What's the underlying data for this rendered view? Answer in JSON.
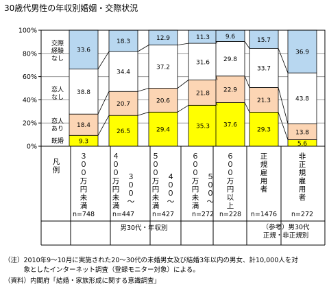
{
  "title": "30歳代男性の年収別婚姻・交際状況",
  "chart_data": {
    "type": "bar",
    "stacked": true,
    "percent": true,
    "yticks": [
      "0%",
      "20%",
      "40%",
      "60%",
      "80%",
      "100%"
    ],
    "ylim": [
      0,
      100
    ],
    "categories": [
      {
        "label": "３００万円未満",
        "sub": "",
        "n": "n=748"
      },
      {
        "label": "４００万円未満",
        "sub": "３００～",
        "n": "n=447"
      },
      {
        "label": "５００万円未満",
        "sub": "４００～",
        "n": "n=427"
      },
      {
        "label": "６００万円未満",
        "sub": "５００～",
        "n": "n=272"
      },
      {
        "label": "６００万円以上",
        "sub": "",
        "n": "n=228"
      },
      {
        "label": "正規雇用者",
        "sub": "",
        "n": "n=1476"
      },
      {
        "label": "非正規雇用者",
        "sub": "",
        "n": "n=272"
      }
    ],
    "series": [
      {
        "name": "既婚",
        "color": "#ffff00",
        "values": [
          9.3,
          26.5,
          29.4,
          35.3,
          37.6,
          29.3,
          5.6
        ]
      },
      {
        "name": "恋人あり",
        "color": "#fcd5b4",
        "values": [
          18.4,
          20.7,
          20.6,
          21.8,
          22.9,
          21.3,
          13.8
        ]
      },
      {
        "name": "恋人なし",
        "color": "#ffffff",
        "values": [
          38.8,
          34.4,
          37.2,
          31.6,
          29.8,
          33.7,
          43.8
        ]
      },
      {
        "name": "交際経験なし",
        "color": "#b8d7f0",
        "values": [
          33.6,
          18.3,
          12.9,
          11.3,
          9.6,
          15.7,
          36.9
        ]
      }
    ],
    "legend_label": "凡例",
    "groups": [
      {
        "line1": "男30代・年収別",
        "line2": ""
      },
      {
        "line1": "（参考）男30代",
        "line2": "正規・非正規別"
      }
    ]
  },
  "notes": [
    "（注）2010年9～10月に実施された20～30代の未婚男女及び結婚3年以内の男女、計10,000人を対",
    "　　　象としたインターネット調査（登録モニター対象）による。",
    "（資料）内閣府「結婚・家族形成に関する意識調査」"
  ]
}
